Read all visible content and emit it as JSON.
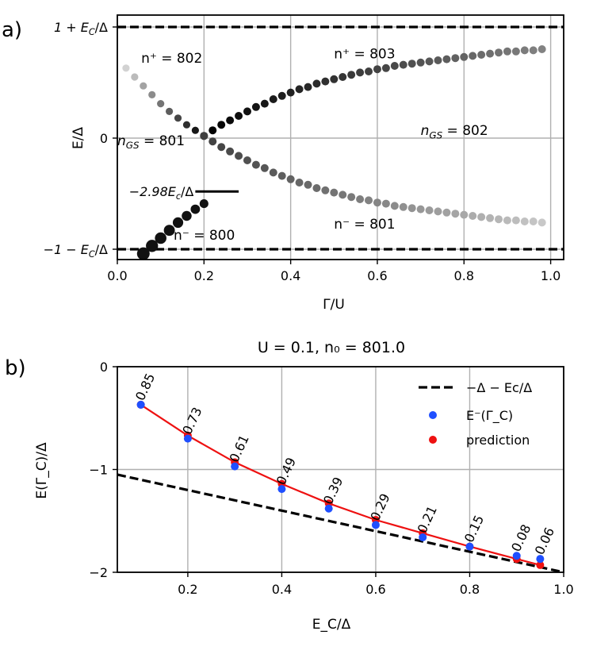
{
  "chart_data": [
    {
      "panel_label": "a)",
      "type": "scatter",
      "xlabel": "Γ/U",
      "ylabel": "E/Δ",
      "xlim": [
        0.0,
        1.03
      ],
      "ylim": [
        -1.1,
        1.0
      ],
      "grid": true,
      "x_ticks": [
        "0.0",
        "0.2",
        "0.4",
        "0.6",
        "0.8",
        "1.0"
      ],
      "y_ticks": [
        {
          "value": 1.0,
          "label": "1 + E_C/Δ"
        },
        {
          "value": 0.0,
          "label": "0"
        },
        {
          "value": -1.0,
          "label": "−1 − E_C/Δ"
        }
      ],
      "hlines": [
        {
          "y": 1.0,
          "style": "dashed"
        },
        {
          "y": -1.0,
          "style": "dashed"
        }
      ],
      "marker_line": {
        "y": -0.48,
        "x_start": 0.18,
        "x_end": 0.28,
        "label": "−2.98E_c/Δ"
      },
      "annotations": [
        {
          "text": "n⁺ = 802",
          "x": 0.055,
          "y": 0.72
        },
        {
          "text": "n⁺ = 803",
          "x": 0.5,
          "y": 0.76
        },
        {
          "text": "n_GS = 801",
          "x": 0.0,
          "y": -0.02
        },
        {
          "text": "n_GS = 802",
          "x": 0.7,
          "y": 0.07
        },
        {
          "text": "n⁻ = 800",
          "x": 0.13,
          "y": -0.87
        },
        {
          "text": "n⁻ = 801",
          "x": 0.5,
          "y": -0.77
        }
      ],
      "series": [
        {
          "name": "n+ 802 branch",
          "x": [
            0.02,
            0.04,
            0.06,
            0.08,
            0.1,
            0.12,
            0.14,
            0.16,
            0.18,
            0.2
          ],
          "y": [
            0.63,
            0.55,
            0.47,
            0.39,
            0.31,
            0.24,
            0.18,
            0.12,
            0.07,
            0.02
          ]
        },
        {
          "name": "n+ 803 branch",
          "x": [
            0.2,
            0.22,
            0.24,
            0.26,
            0.28,
            0.3,
            0.32,
            0.34,
            0.36,
            0.38,
            0.4,
            0.42,
            0.44,
            0.46,
            0.48,
            0.5,
            0.52,
            0.54,
            0.56,
            0.58,
            0.6,
            0.62,
            0.64,
            0.66,
            0.68,
            0.7,
            0.72,
            0.74,
            0.76,
            0.78,
            0.8,
            0.82,
            0.84,
            0.86,
            0.88,
            0.9,
            0.92,
            0.94,
            0.96,
            0.98
          ],
          "y": [
            0.02,
            0.07,
            0.12,
            0.16,
            0.2,
            0.24,
            0.28,
            0.31,
            0.35,
            0.38,
            0.41,
            0.44,
            0.46,
            0.49,
            0.51,
            0.53,
            0.55,
            0.57,
            0.59,
            0.6,
            0.62,
            0.63,
            0.65,
            0.66,
            0.67,
            0.68,
            0.69,
            0.7,
            0.71,
            0.72,
            0.73,
            0.74,
            0.75,
            0.76,
            0.77,
            0.78,
            0.78,
            0.79,
            0.79,
            0.8
          ]
        },
        {
          "name": "n- 801 branch",
          "x": [
            0.2,
            0.22,
            0.24,
            0.26,
            0.28,
            0.3,
            0.32,
            0.34,
            0.36,
            0.38,
            0.4,
            0.42,
            0.44,
            0.46,
            0.48,
            0.5,
            0.52,
            0.54,
            0.56,
            0.58,
            0.6,
            0.62,
            0.64,
            0.66,
            0.68,
            0.7,
            0.72,
            0.74,
            0.76,
            0.78,
            0.8,
            0.82,
            0.84,
            0.86,
            0.88,
            0.9,
            0.92,
            0.94,
            0.96,
            0.98
          ],
          "y": [
            0.02,
            -0.03,
            -0.08,
            -0.12,
            -0.16,
            -0.2,
            -0.24,
            -0.27,
            -0.31,
            -0.34,
            -0.37,
            -0.4,
            -0.42,
            -0.45,
            -0.47,
            -0.49,
            -0.51,
            -0.53,
            -0.55,
            -0.56,
            -0.58,
            -0.59,
            -0.61,
            -0.62,
            -0.63,
            -0.64,
            -0.65,
            -0.66,
            -0.67,
            -0.68,
            -0.69,
            -0.7,
            -0.71,
            -0.72,
            -0.73,
            -0.74,
            -0.74,
            -0.75,
            -0.75,
            -0.76
          ]
        },
        {
          "name": "n- 800 branch",
          "x": [
            0.06,
            0.08,
            0.1,
            0.12,
            0.14,
            0.16,
            0.18,
            0.2
          ],
          "y": [
            -1.04,
            -0.97,
            -0.9,
            -0.83,
            -0.76,
            -0.7,
            -0.64,
            -0.59
          ]
        }
      ]
    },
    {
      "panel_label": "b)",
      "type": "scatter",
      "title": "U = 0.1, n₀ = 801.0",
      "xlabel": "E_C/Δ",
      "ylabel": "E(Γ_C)/Δ",
      "xlim": [
        0.05,
        1.0
      ],
      "ylim": [
        -2.0,
        0.0
      ],
      "grid": true,
      "x_ticks": [
        "0.2",
        "0.4",
        "0.6",
        "0.8",
        "1.0"
      ],
      "y_ticks": [
        "0",
        "−1",
        "−2"
      ],
      "legend_position": "top-right",
      "legend": [
        "−Δ − Ec/Δ",
        "E⁻(Γ_C)",
        "prediction"
      ],
      "series": [
        {
          "name": "−Δ − Ec/Δ",
          "style": "dashed",
          "x": [
            0.05,
            1.0
          ],
          "y": [
            -1.05,
            -2.0
          ]
        },
        {
          "name": "E⁻(Γ_C)",
          "color": "#1f4fff",
          "x": [
            0.1,
            0.2,
            0.3,
            0.4,
            0.5,
            0.6,
            0.7,
            0.8,
            0.9,
            0.95
          ],
          "y": [
            -0.37,
            -0.7,
            -0.97,
            -1.19,
            -1.38,
            -1.54,
            -1.66,
            -1.75,
            -1.84,
            -1.87
          ]
        },
        {
          "name": "prediction",
          "color": "#ee1111",
          "x": [
            0.1,
            0.2,
            0.3,
            0.4,
            0.5,
            0.6,
            0.7,
            0.8,
            0.9,
            0.95
          ],
          "y": [
            -0.37,
            -0.67,
            -0.93,
            -1.14,
            -1.33,
            -1.49,
            -1.62,
            -1.75,
            -1.87,
            -1.93
          ]
        }
      ],
      "point_labels": [
        "0.85",
        "0.73",
        "0.61",
        "0.49",
        "0.39",
        "0.29",
        "0.21",
        "0.15",
        "0.08",
        "0.06"
      ]
    }
  ]
}
